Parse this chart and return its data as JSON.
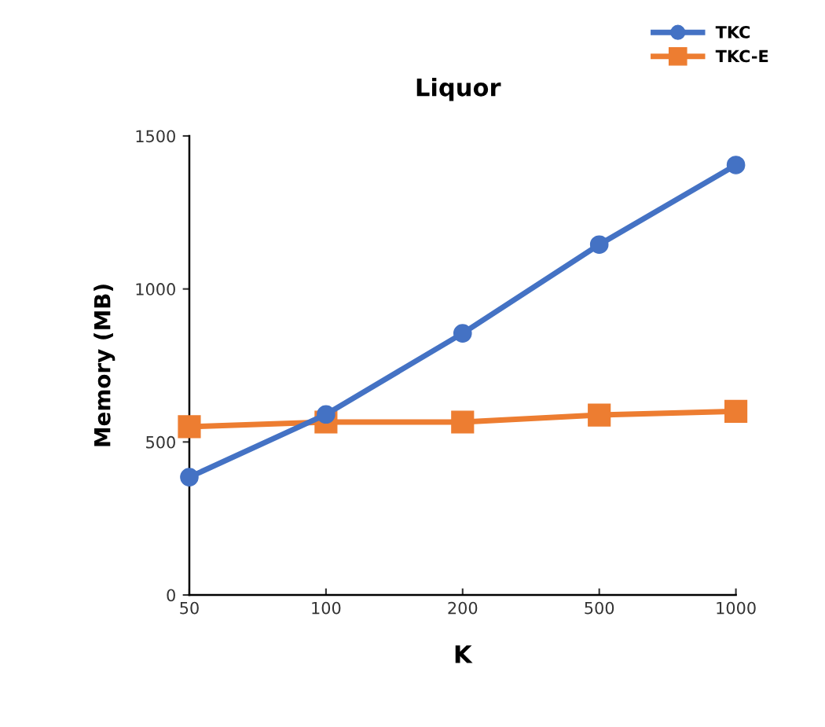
{
  "chart_data": {
    "type": "line",
    "title": "Liquor",
    "xlabel": "K",
    "ylabel": "Memory (MB)",
    "categories": [
      "50",
      "100",
      "200",
      "500",
      "1000"
    ],
    "series": [
      {
        "name": "TKC",
        "color": "#4472c4",
        "marker": "circle",
        "values": [
          385,
          590,
          855,
          1145,
          1405
        ]
      },
      {
        "name": "TKC-E",
        "color": "#ed7d31",
        "marker": "square",
        "values": [
          550,
          565,
          565,
          588,
          600
        ]
      }
    ],
    "ylim": [
      0,
      1500
    ],
    "yticks": [
      0,
      500,
      1000,
      1500
    ],
    "grid": false,
    "legend": "top right",
    "line_style": "solid"
  }
}
